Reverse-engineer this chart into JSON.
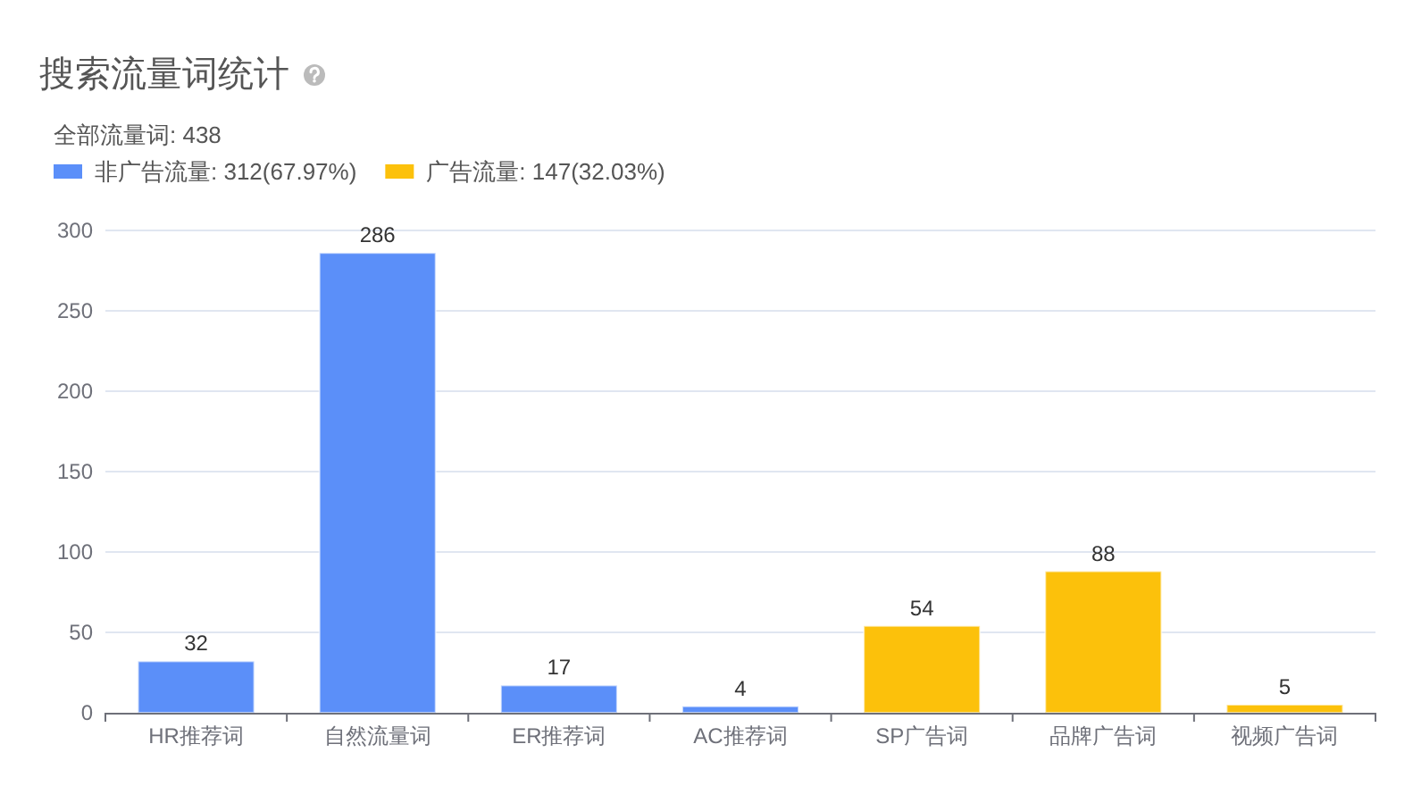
{
  "chart_data": {
    "type": "bar",
    "title": "搜索流量词统计",
    "subtitle": "全部流量词: 438",
    "categories": [
      "HR推荐词",
      "自然流量词",
      "ER推荐词",
      "AC推荐词",
      "SP广告词",
      "品牌广告词",
      "视频广告词"
    ],
    "stacked": true,
    "series": [
      {
        "name": "非广告流量: 312(67.97%)",
        "color": "#5b8ff9",
        "values": [
          32,
          286,
          17,
          4,
          null,
          null,
          null
        ]
      },
      {
        "name": "广告流量: 147(32.03%)",
        "color": "#fcc10b",
        "values": [
          null,
          null,
          null,
          null,
          54,
          88,
          5
        ]
      }
    ],
    "ylim": [
      0,
      300
    ],
    "yticks": [
      0,
      50,
      100,
      150,
      200,
      250,
      300
    ],
    "grid": "y",
    "legend": "top left",
    "data_labels": true
  }
}
